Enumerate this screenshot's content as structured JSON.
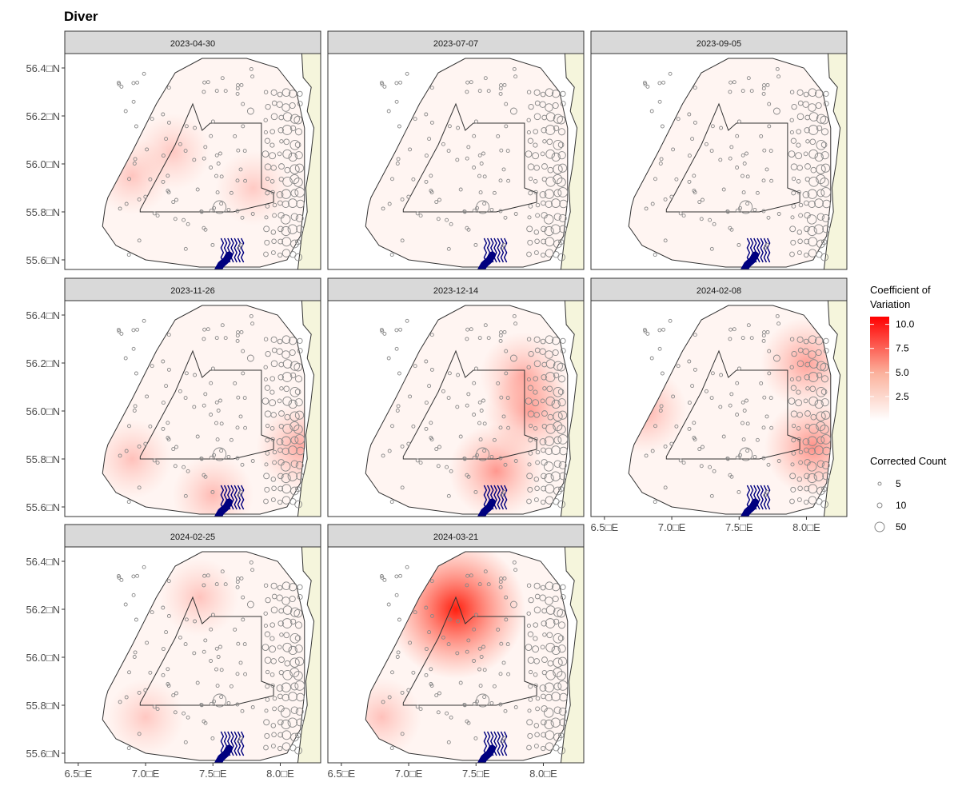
{
  "chart_data": {
    "type": "heatmap",
    "title": "Diver",
    "panels": [
      {
        "label": "2023-04-30",
        "hotspots": [
          {
            "lon": 6.9,
            "lat": 55.95,
            "cv": 0.9
          },
          {
            "lon": 7.2,
            "lat": 56.05,
            "cv": 0.8
          },
          {
            "lon": 7.8,
            "lat": 55.9,
            "cv": 0.6
          }
        ]
      },
      {
        "label": "2023-07-07",
        "hotspots": []
      },
      {
        "label": "2023-09-05",
        "hotspots": []
      },
      {
        "label": "2023-11-26",
        "hotspots": [
          {
            "lon": 8.15,
            "lat": 55.85,
            "cv": 2.5
          },
          {
            "lon": 7.5,
            "lat": 55.65,
            "cv": 1.5
          },
          {
            "lon": 6.9,
            "lat": 55.8,
            "cv": 1.2
          }
        ]
      },
      {
        "label": "2023-12-14",
        "hotspots": [
          {
            "lon": 7.65,
            "lat": 55.75,
            "cv": 3.5
          },
          {
            "lon": 7.9,
            "lat": 56.0,
            "cv": 3.0
          },
          {
            "lon": 7.85,
            "lat": 56.15,
            "cv": 2.2
          }
        ]
      },
      {
        "label": "2024-02-08",
        "hotspots": [
          {
            "lon": 8.05,
            "lat": 55.85,
            "cv": 4.0
          },
          {
            "lon": 8.0,
            "lat": 56.2,
            "cv": 3.0
          },
          {
            "lon": 6.8,
            "lat": 56.0,
            "cv": 2.0
          }
        ]
      },
      {
        "label": "2024-02-25",
        "hotspots": [
          {
            "lon": 7.4,
            "lat": 56.25,
            "cv": 1.0
          },
          {
            "lon": 7.0,
            "lat": 55.75,
            "cv": 0.8
          }
        ]
      },
      {
        "label": "2024-03-21",
        "hotspots": [
          {
            "lon": 7.35,
            "lat": 56.2,
            "cv": 10.5
          },
          {
            "lon": 6.8,
            "lat": 55.75,
            "cv": 1.2
          }
        ]
      }
    ],
    "x_ticks": [
      "6.5□E",
      "7.0□E",
      "7.5□E",
      "8.0□E"
    ],
    "x_tick_values": [
      6.5,
      7.0,
      7.5,
      8.0
    ],
    "y_ticks": [
      "56.4□N",
      "56.2□N",
      "56.0□N",
      "55.8□N",
      "55.6□N"
    ],
    "y_tick_values": [
      56.4,
      56.2,
      56.0,
      55.8,
      55.6
    ],
    "xlim": [
      6.4,
      8.3
    ],
    "ylim": [
      55.56,
      56.46
    ],
    "fill_legend": {
      "title_lines": [
        "Coefficient of",
        "Variation"
      ],
      "ticks": [
        "10.0",
        "7.5",
        "5.0",
        "2.5"
      ],
      "tick_values": [
        10.0,
        7.5,
        5.0,
        2.5
      ],
      "range": [
        0,
        10.8
      ],
      "colors": {
        "low": "#ffffff",
        "high": "#ff0000"
      }
    },
    "size_legend": {
      "title": "Corrected Count",
      "labels": [
        "5",
        "10",
        "50"
      ],
      "values": [
        5,
        10,
        50
      ]
    },
    "colors": {
      "strip": "#d9d9d9",
      "land": "#f5f5dc",
      "coast": "#333333",
      "boundary": "#333333",
      "survey_points": "#888888",
      "turbines": "#00007f"
    },
    "grid": false
  }
}
